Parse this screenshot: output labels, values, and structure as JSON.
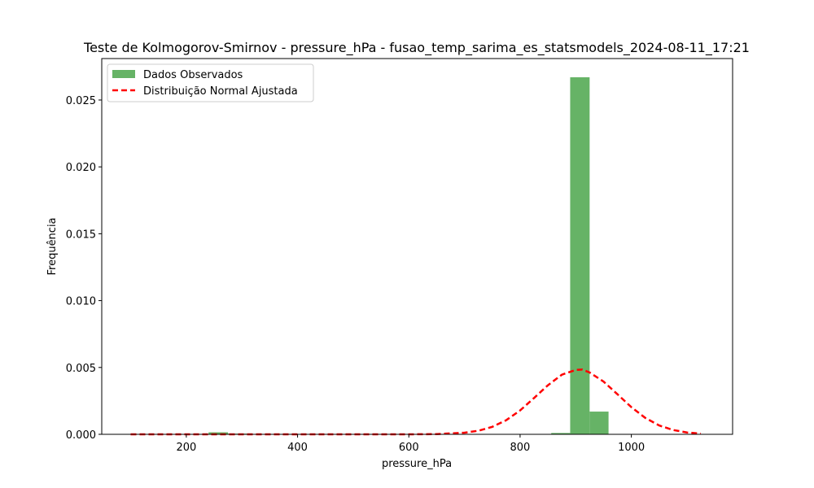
{
  "chart_data": {
    "type": "bar",
    "title": "Teste de Kolmogorov-Smirnov - pressure_hPa - fusao_temp_sarima_es_statsmodels_2024-08-11_17:21",
    "xlabel": "pressure_hPa",
    "ylabel": "Frequência",
    "xlim": [
      48,
      1182
    ],
    "ylim": [
      0,
      0.0281
    ],
    "xticks": [
      200,
      400,
      600,
      800,
      1000
    ],
    "xtick_labels": [
      "200",
      "400",
      "600",
      "800",
      "1000"
    ],
    "yticks": [
      0.0,
      0.005,
      0.01,
      0.015,
      0.02,
      0.025
    ],
    "ytick_labels": [
      "0.000",
      "0.005",
      "0.010",
      "0.015",
      "0.020",
      "0.025"
    ],
    "legend_position": "top-left",
    "series": [
      {
        "name": "Dados Observados",
        "kind": "histogram",
        "color": "#66b366",
        "bins": [
          {
            "x0": 240,
            "x1": 275,
            "value": 0.00015
          },
          {
            "x0": 275,
            "x1": 309,
            "value": 5e-05
          },
          {
            "x0": 821,
            "x1": 856,
            "value": 3e-05
          },
          {
            "x0": 856,
            "x1": 890,
            "value": 0.0001
          },
          {
            "x0": 890,
            "x1": 925,
            "value": 0.0267
          },
          {
            "x0": 925,
            "x1": 959,
            "value": 0.0017
          },
          {
            "x0": 959,
            "x1": 993,
            "value": 3e-05
          },
          {
            "x0": 993,
            "x1": 1028,
            "value": 2e-05
          }
        ]
      },
      {
        "name": "Distribuição Normal Ajustada",
        "kind": "line",
        "color": "#ff0000",
        "dash": "dashed",
        "points": [
          [
            100,
            0.0
          ],
          [
            200,
            0.0
          ],
          [
            300,
            0.0
          ],
          [
            400,
            0.0
          ],
          [
            500,
            0.0
          ],
          [
            600,
            0.0
          ],
          [
            650,
            2e-05
          ],
          [
            700,
            0.00012
          ],
          [
            725,
            0.00027
          ],
          [
            750,
            0.00056
          ],
          [
            775,
            0.00105
          ],
          [
            800,
            0.00178
          ],
          [
            825,
            0.00271
          ],
          [
            850,
            0.00367
          ],
          [
            875,
            0.00446
          ],
          [
            900,
            0.00482
          ],
          [
            912,
            0.00484
          ],
          [
            925,
            0.00462
          ],
          [
            950,
            0.00395
          ],
          [
            975,
            0.003
          ],
          [
            1000,
            0.00203
          ],
          [
            1025,
            0.00123
          ],
          [
            1050,
            0.00066
          ],
          [
            1075,
            0.00032
          ],
          [
            1100,
            0.00014
          ],
          [
            1125,
            5e-05
          ]
        ]
      }
    ]
  }
}
